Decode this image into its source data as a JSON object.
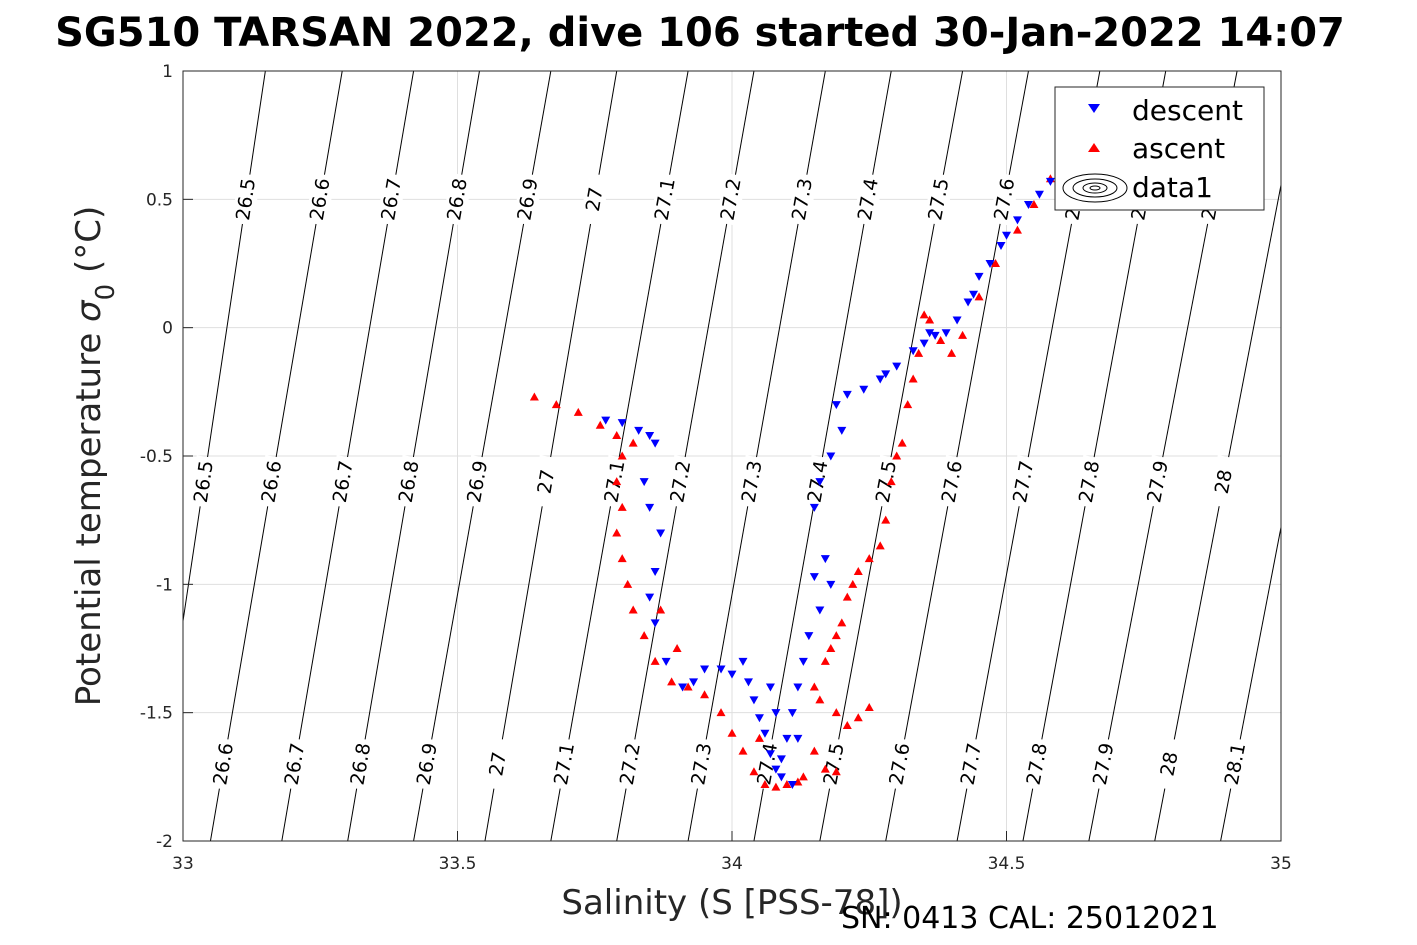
{
  "chart_data": {
    "type": "scatter",
    "title": "SG510 TARSAN 2022, dive 106 started 30-Jan-2022 14:07",
    "xlabel": "Salinity (S [PSS-78])",
    "ylabel_main": "Potential temperature ",
    "ylabel_sigma": "σ",
    "ylabel_sub": "0",
    "ylabel_unit": " (°C)",
    "footer": "SN: 0413  CAL: 25012021",
    "xlim": [
      33,
      35
    ],
    "ylim": [
      -2,
      1
    ],
    "xticks": [
      33,
      33.5,
      34,
      34.5,
      35
    ],
    "xtick_labels": [
      "33",
      "33.5",
      "34",
      "34.5",
      "35"
    ],
    "yticks": [
      -2,
      -1.5,
      -1,
      -0.5,
      0,
      0.5,
      1
    ],
    "ytick_labels": [
      "-2",
      "-1.5",
      "-1",
      "-0.5",
      "0",
      "0.5",
      "1"
    ],
    "grid": true,
    "legend_position": "top-right",
    "legend": [
      {
        "label": "descent",
        "marker": "triangle-down",
        "color": "#0000ff"
      },
      {
        "label": "ascent",
        "marker": "triangle-up",
        "color": "#ff0000"
      },
      {
        "label": "data1",
        "marker": "contour"
      }
    ],
    "contours": {
      "color": "#000000",
      "lines": [
        {
          "level": 26.5,
          "label": "26.5",
          "bottom_s": 32.94,
          "top_s": 33.15
        },
        {
          "level": 26.6,
          "label": "26.6",
          "bottom_s": 33.05,
          "top_s": 33.29
        },
        {
          "level": 26.7,
          "label": "26.7",
          "bottom_s": 33.18,
          "top_s": 33.42
        },
        {
          "level": 26.8,
          "label": "26.8",
          "bottom_s": 33.3,
          "top_s": 33.54
        },
        {
          "level": 26.9,
          "label": "26.9",
          "bottom_s": 33.42,
          "top_s": 33.67
        },
        {
          "level": 27.0,
          "label": "27",
          "bottom_s": 33.55,
          "top_s": 33.79
        },
        {
          "level": 27.1,
          "label": "27.1",
          "bottom_s": 33.67,
          "top_s": 33.92
        },
        {
          "level": 27.2,
          "label": "27.2",
          "bottom_s": 33.79,
          "top_s": 34.04
        },
        {
          "level": 27.3,
          "label": "27.3",
          "bottom_s": 33.92,
          "top_s": 34.17
        },
        {
          "level": 27.4,
          "label": "27.4",
          "bottom_s": 34.04,
          "top_s": 34.29
        },
        {
          "level": 27.5,
          "label": "27.5",
          "bottom_s": 34.16,
          "top_s": 34.42
        },
        {
          "level": 27.6,
          "label": "27.6",
          "bottom_s": 34.28,
          "top_s": 34.54
        },
        {
          "level": 27.7,
          "label": "27.7",
          "bottom_s": 34.41,
          "top_s": 34.67
        },
        {
          "level": 27.8,
          "label": "27.8",
          "bottom_s": 34.53,
          "top_s": 34.79
        },
        {
          "level": 27.9,
          "label": "27.9",
          "bottom_s": 34.65,
          "top_s": 34.92
        },
        {
          "level": 28.0,
          "label": "28",
          "bottom_s": 34.77,
          "top_s": 35.04
        },
        {
          "level": 28.1,
          "label": "28.1",
          "bottom_s": 34.89,
          "top_s": 35.16
        }
      ],
      "label_rows_theta": [
        0.5,
        -0.6,
        -1.7
      ]
    },
    "series": [
      {
        "name": "descent",
        "marker": "triangle-down",
        "color": "#0000ff",
        "points": [
          [
            34.58,
            0.57
          ],
          [
            34.54,
            0.48
          ],
          [
            34.5,
            0.36
          ],
          [
            34.47,
            0.25
          ],
          [
            34.44,
            0.13
          ],
          [
            34.41,
            0.03
          ],
          [
            34.39,
            -0.02
          ],
          [
            34.37,
            -0.03
          ],
          [
            34.35,
            -0.06
          ],
          [
            34.33,
            -0.09
          ],
          [
            34.3,
            -0.15
          ],
          [
            34.27,
            -0.2
          ],
          [
            34.24,
            -0.24
          ],
          [
            34.21,
            -0.26
          ],
          [
            34.19,
            -0.3
          ],
          [
            34.2,
            -0.4
          ],
          [
            34.18,
            -0.5
          ],
          [
            34.16,
            -0.6
          ],
          [
            34.15,
            -0.7
          ],
          [
            34.17,
            -0.9
          ],
          [
            34.15,
            -0.97
          ],
          [
            34.18,
            -1.0
          ],
          [
            34.16,
            -1.1
          ],
          [
            34.14,
            -1.2
          ],
          [
            34.13,
            -1.3
          ],
          [
            34.12,
            -1.4
          ],
          [
            34.11,
            -1.5
          ],
          [
            34.1,
            -1.6
          ],
          [
            34.09,
            -1.68
          ],
          [
            34.08,
            -1.72
          ],
          [
            34.07,
            -1.66
          ],
          [
            34.06,
            -1.58
          ],
          [
            34.05,
            -1.52
          ],
          [
            34.04,
            -1.45
          ],
          [
            34.03,
            -1.38
          ],
          [
            34.02,
            -1.3
          ],
          [
            34.0,
            -1.35
          ],
          [
            33.98,
            -1.33
          ],
          [
            33.95,
            -1.33
          ],
          [
            33.93,
            -1.38
          ],
          [
            33.91,
            -1.4
          ],
          [
            33.88,
            -1.3
          ],
          [
            33.86,
            -1.15
          ],
          [
            33.85,
            -1.05
          ],
          [
            33.86,
            -0.95
          ],
          [
            33.87,
            -0.8
          ],
          [
            33.85,
            -0.7
          ],
          [
            33.84,
            -0.6
          ],
          [
            33.86,
            -0.45
          ],
          [
            33.85,
            -0.42
          ],
          [
            33.83,
            -0.4
          ],
          [
            33.8,
            -0.37
          ],
          [
            33.77,
            -0.36
          ],
          [
            34.56,
            0.52
          ],
          [
            34.52,
            0.42
          ],
          [
            34.49,
            0.32
          ],
          [
            34.45,
            0.2
          ],
          [
            34.43,
            0.1
          ],
          [
            34.36,
            -0.02
          ],
          [
            34.28,
            -0.18
          ],
          [
            34.07,
            -1.4
          ],
          [
            34.08,
            -1.5
          ],
          [
            34.09,
            -1.75
          ],
          [
            34.11,
            -1.78
          ],
          [
            34.12,
            -1.6
          ]
        ]
      },
      {
        "name": "ascent",
        "marker": "triangle-up",
        "color": "#ff0000",
        "points": [
          [
            34.58,
            0.58
          ],
          [
            34.55,
            0.48
          ],
          [
            34.52,
            0.38
          ],
          [
            34.48,
            0.25
          ],
          [
            34.45,
            0.12
          ],
          [
            34.42,
            -0.03
          ],
          [
            34.4,
            -0.1
          ],
          [
            34.38,
            -0.05
          ],
          [
            34.36,
            0.03
          ],
          [
            34.35,
            0.05
          ],
          [
            34.34,
            -0.1
          ],
          [
            34.33,
            -0.2
          ],
          [
            34.32,
            -0.3
          ],
          [
            34.31,
            -0.45
          ],
          [
            34.3,
            -0.5
          ],
          [
            34.29,
            -0.6
          ],
          [
            34.28,
            -0.75
          ],
          [
            34.27,
            -0.85
          ],
          [
            34.25,
            -0.9
          ],
          [
            34.23,
            -0.95
          ],
          [
            34.22,
            -1.0
          ],
          [
            34.21,
            -1.05
          ],
          [
            34.2,
            -1.15
          ],
          [
            34.19,
            -1.2
          ],
          [
            34.18,
            -1.25
          ],
          [
            34.17,
            -1.3
          ],
          [
            34.19,
            -1.5
          ],
          [
            34.21,
            -1.55
          ],
          [
            34.23,
            -1.52
          ],
          [
            34.25,
            -1.48
          ],
          [
            34.16,
            -1.45
          ],
          [
            34.15,
            -1.4
          ],
          [
            34.15,
            -1.65
          ],
          [
            34.17,
            -1.72
          ],
          [
            34.19,
            -1.73
          ],
          [
            34.13,
            -1.75
          ],
          [
            34.1,
            -1.78
          ],
          [
            34.08,
            -1.79
          ],
          [
            34.06,
            -1.78
          ],
          [
            34.04,
            -1.73
          ],
          [
            34.02,
            -1.65
          ],
          [
            34.0,
            -1.58
          ],
          [
            33.98,
            -1.5
          ],
          [
            33.95,
            -1.43
          ],
          [
            33.92,
            -1.4
          ],
          [
            33.89,
            -1.38
          ],
          [
            33.86,
            -1.3
          ],
          [
            33.84,
            -1.2
          ],
          [
            33.82,
            -1.1
          ],
          [
            33.81,
            -1.0
          ],
          [
            33.8,
            -0.9
          ],
          [
            33.79,
            -0.8
          ],
          [
            33.8,
            -0.7
          ],
          [
            33.79,
            -0.6
          ],
          [
            33.8,
            -0.5
          ],
          [
            33.82,
            -0.45
          ],
          [
            33.79,
            -0.42
          ],
          [
            33.76,
            -0.38
          ],
          [
            33.72,
            -0.33
          ],
          [
            33.68,
            -0.3
          ],
          [
            33.64,
            -0.27
          ],
          [
            33.87,
            -1.1
          ],
          [
            33.9,
            -1.25
          ],
          [
            34.05,
            -1.6
          ],
          [
            34.12,
            -1.77
          ]
        ]
      }
    ]
  }
}
